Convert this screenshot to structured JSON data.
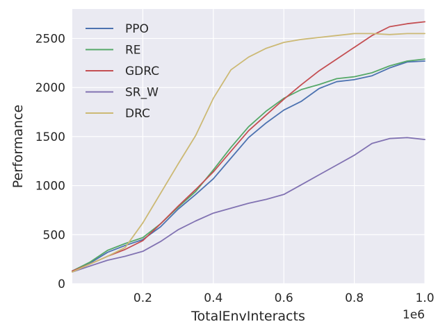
{
  "chart_data": {
    "type": "line",
    "title": "",
    "xlabel": "TotalEnvInteracts",
    "ylabel": "Performance",
    "x_offset_label": "1e6",
    "xlim": [
      0.0,
      1.0
    ],
    "ylim": [
      0,
      2800
    ],
    "xticks": [
      0.2,
      0.4,
      0.6,
      0.8,
      1.0
    ],
    "xtick_labels": [
      "0.2",
      "0.4",
      "0.6",
      "0.8",
      "1.0"
    ],
    "yticks": [
      0,
      500,
      1000,
      1500,
      2000,
      2500
    ],
    "ytick_labels": [
      "0",
      "500",
      "1000",
      "1500",
      "2000",
      "2500"
    ],
    "legend_position": "upper-left",
    "background_color": "#eaeaf2",
    "series": [
      {
        "name": "PPO",
        "color": "#4c72b0",
        "x": [
          0.0,
          0.05,
          0.1,
          0.15,
          0.2,
          0.25,
          0.3,
          0.35,
          0.4,
          0.45,
          0.5,
          0.55,
          0.6,
          0.65,
          0.7,
          0.75,
          0.8,
          0.85,
          0.9,
          0.95,
          1.0
        ],
        "y": [
          130,
          210,
          320,
          390,
          450,
          580,
          760,
          910,
          1070,
          1280,
          1490,
          1640,
          1770,
          1860,
          1990,
          2060,
          2080,
          2120,
          2200,
          2260,
          2270
        ]
      },
      {
        "name": "RE",
        "color": "#55a868",
        "x": [
          0.0,
          0.05,
          0.1,
          0.15,
          0.2,
          0.25,
          0.3,
          0.35,
          0.4,
          0.45,
          0.5,
          0.55,
          0.6,
          0.65,
          0.7,
          0.75,
          0.8,
          0.85,
          0.9,
          0.95,
          1.0
        ],
        "y": [
          130,
          220,
          340,
          410,
          470,
          610,
          780,
          940,
          1160,
          1390,
          1600,
          1760,
          1890,
          1980,
          2030,
          2090,
          2110,
          2150,
          2220,
          2270,
          2290
        ]
      },
      {
        "name": "GDRC",
        "color": "#c44e52",
        "x": [
          0.0,
          0.05,
          0.1,
          0.15,
          0.2,
          0.25,
          0.3,
          0.35,
          0.4,
          0.45,
          0.5,
          0.55,
          0.6,
          0.65,
          0.7,
          0.75,
          0.8,
          0.85,
          0.9,
          0.95,
          1.0
        ],
        "y": [
          130,
          200,
          280,
          350,
          440,
          610,
          790,
          960,
          1140,
          1350,
          1560,
          1720,
          1880,
          2030,
          2170,
          2290,
          2410,
          2530,
          2620,
          2650,
          2670
        ]
      },
      {
        "name": "SR_W",
        "color": "#8172b2",
        "x": [
          0.0,
          0.05,
          0.1,
          0.15,
          0.2,
          0.25,
          0.3,
          0.35,
          0.4,
          0.45,
          0.5,
          0.55,
          0.6,
          0.65,
          0.7,
          0.75,
          0.8,
          0.85,
          0.9,
          0.95,
          1.0
        ],
        "y": [
          120,
          180,
          240,
          280,
          330,
          430,
          550,
          640,
          720,
          770,
          820,
          860,
          910,
          1010,
          1110,
          1210,
          1310,
          1430,
          1480,
          1490,
          1470
        ]
      },
      {
        "name": "DRC",
        "color": "#ccb974",
        "x": [
          0.0,
          0.05,
          0.1,
          0.15,
          0.2,
          0.25,
          0.3,
          0.35,
          0.4,
          0.45,
          0.5,
          0.55,
          0.6,
          0.65,
          0.7,
          0.75,
          0.8,
          0.85,
          0.9,
          0.95,
          1.0
        ],
        "y": [
          120,
          200,
          280,
          370,
          620,
          920,
          1220,
          1510,
          1890,
          2180,
          2310,
          2400,
          2460,
          2490,
          2510,
          2530,
          2550,
          2550,
          2540,
          2550,
          2550
        ]
      }
    ]
  }
}
